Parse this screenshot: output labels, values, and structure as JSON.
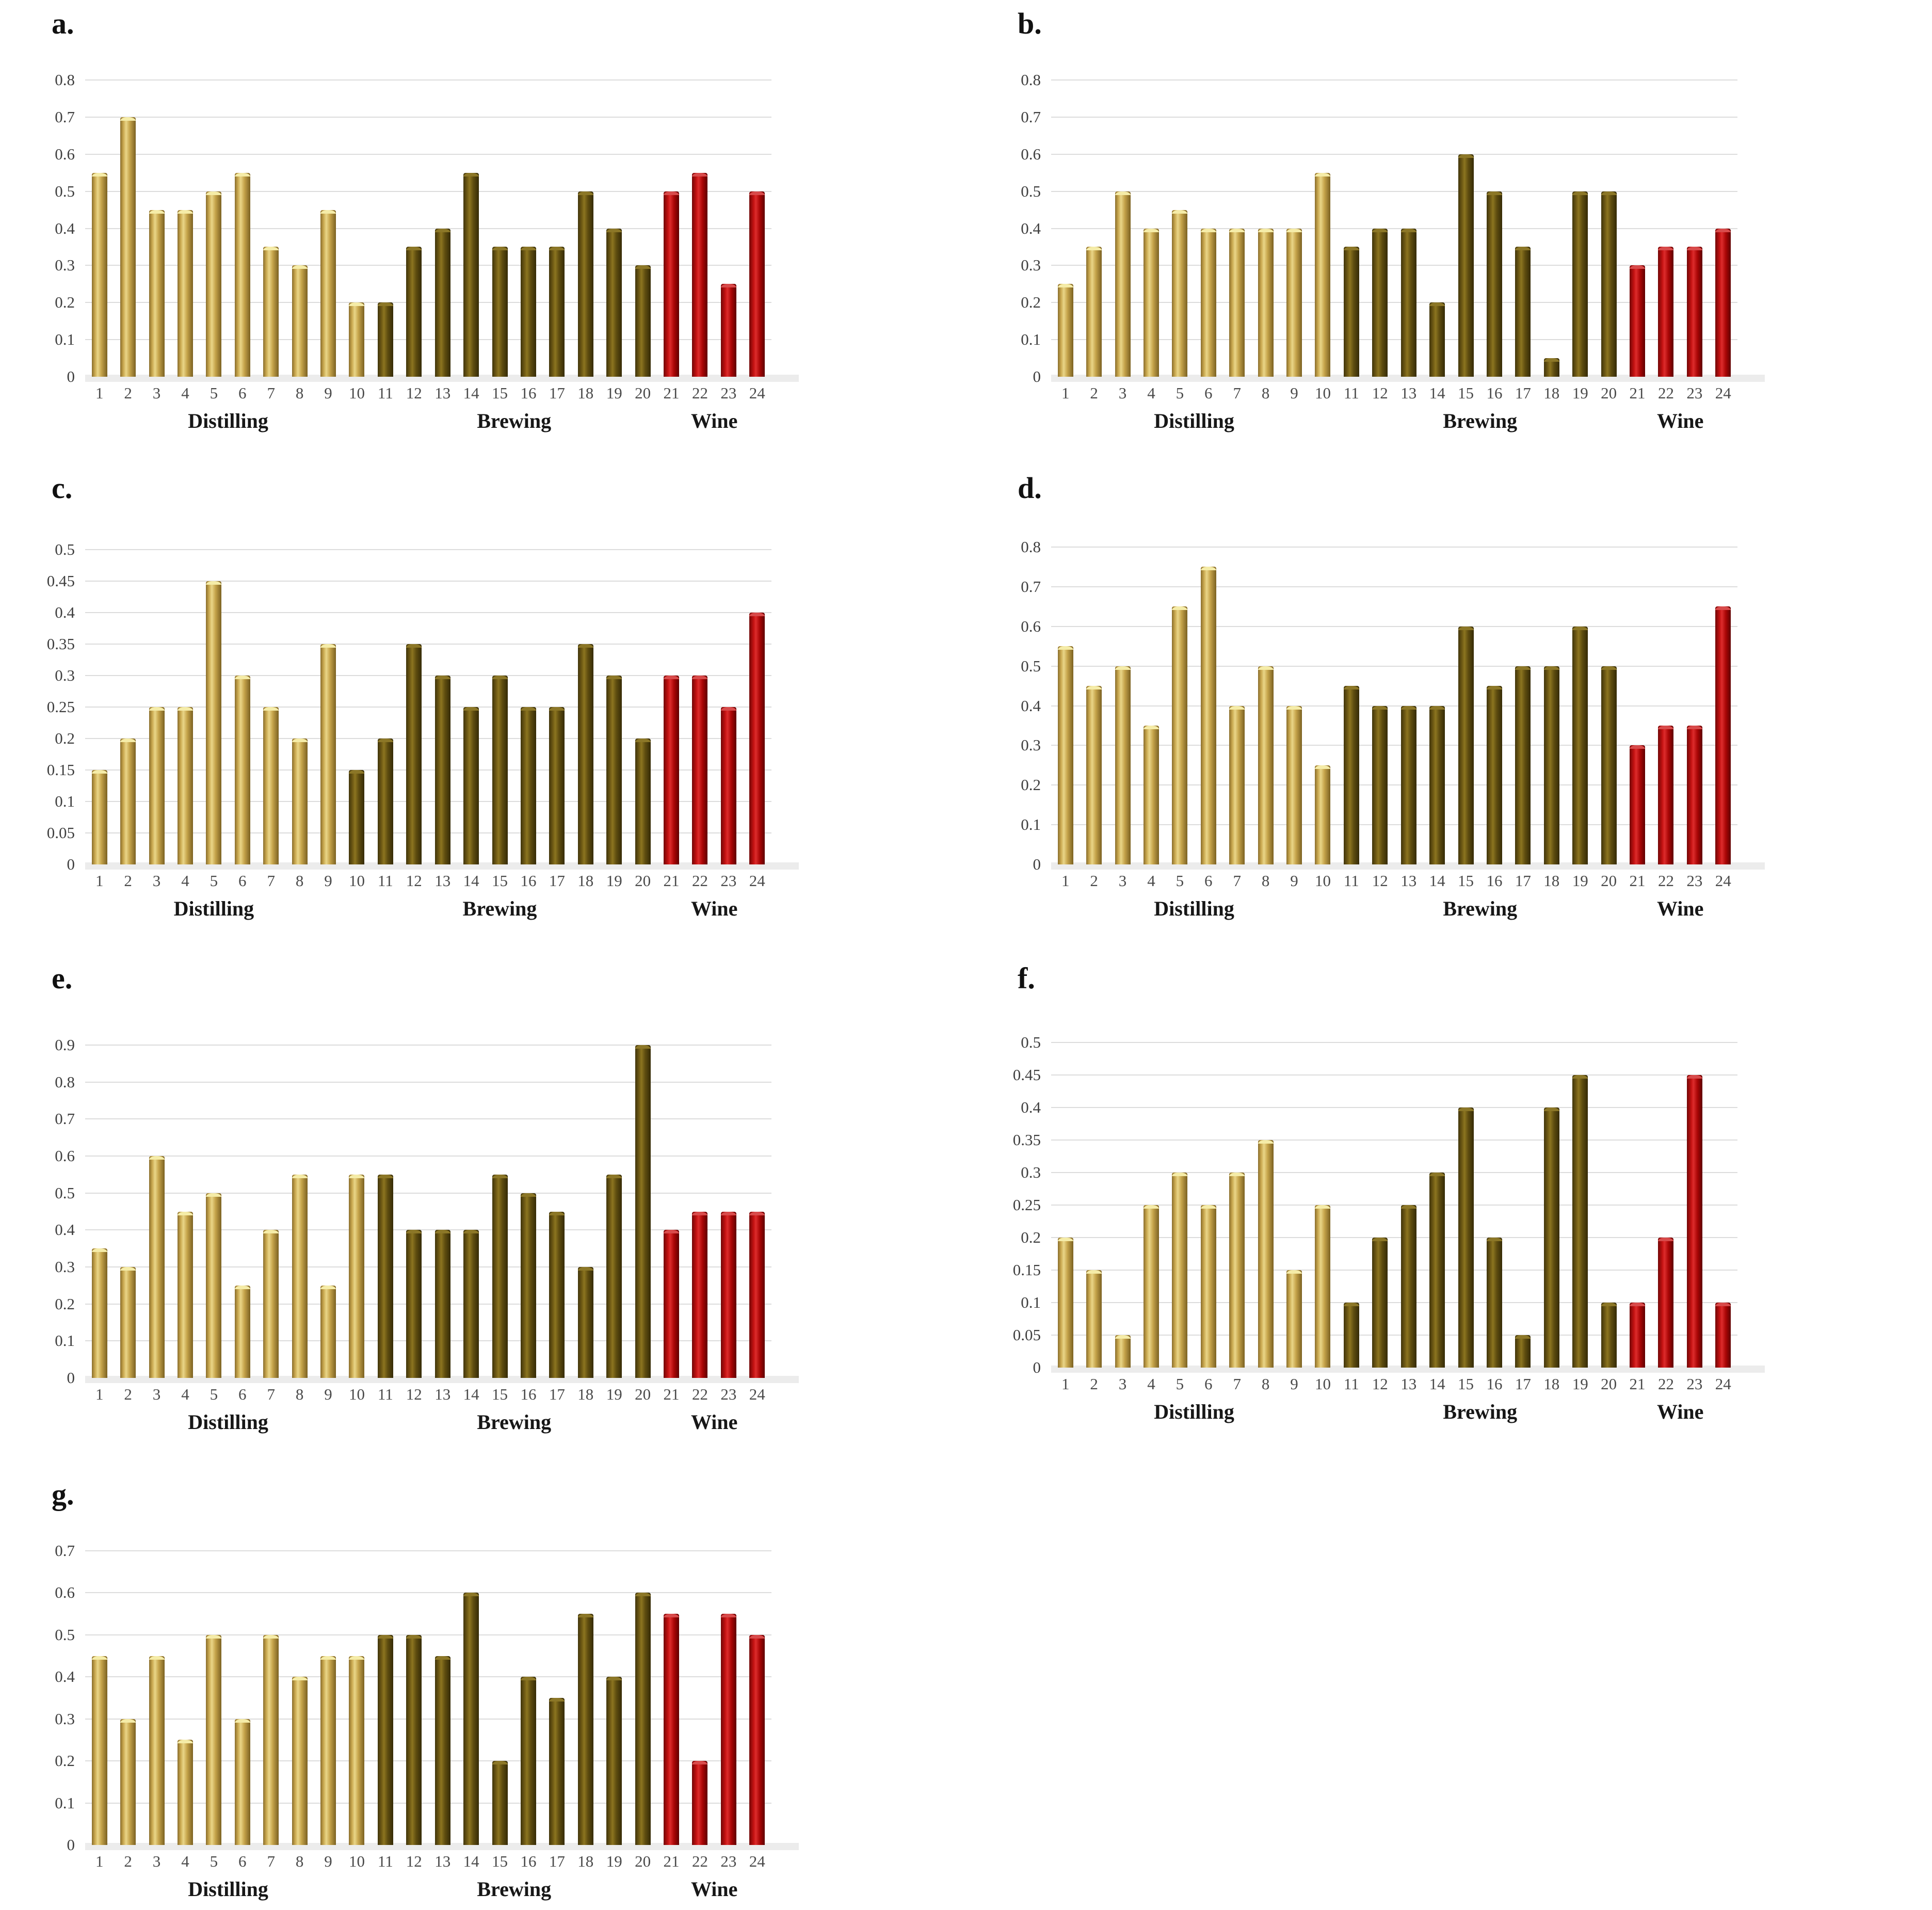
{
  "colors": {
    "distilling": "#C9A84F",
    "brewing": "#6F5A14",
    "wine": "#C01010",
    "gridline": "#DCDCDC"
  },
  "x_categories": [
    "1",
    "2",
    "3",
    "4",
    "5",
    "6",
    "7",
    "8",
    "9",
    "10",
    "11",
    "12",
    "13",
    "14",
    "15",
    "16",
    "17",
    "18",
    "19",
    "20",
    "21",
    "22",
    "23",
    "24"
  ],
  "group_labels": [
    "Distilling",
    "Brewing",
    "Wine"
  ],
  "chart_data": [
    {
      "id": "a",
      "panel_label": "a.",
      "type": "bar",
      "ylim": [
        0,
        0.8
      ],
      "ystep": 0.1,
      "grid": true,
      "groups": [
        {
          "label": "Distilling",
          "color_key": "distilling",
          "from": 1,
          "to": 10
        },
        {
          "label": "Brewing",
          "color_key": "brewing",
          "from": 11,
          "to": 20
        },
        {
          "label": "Wine",
          "color_key": "wine",
          "from": 21,
          "to": 24
        }
      ],
      "values": [
        0.55,
        0.7,
        0.45,
        0.45,
        0.5,
        0.55,
        0.35,
        0.3,
        0.45,
        0.2,
        0.2,
        0.35,
        0.4,
        0.55,
        0.35,
        0.35,
        0.35,
        0.5,
        0.4,
        0.3,
        0.5,
        0.55,
        0.25,
        0.5
      ]
    },
    {
      "id": "b",
      "panel_label": "b.",
      "type": "bar",
      "ylim": [
        0,
        0.8
      ],
      "ystep": 0.1,
      "grid": true,
      "groups": [
        {
          "label": "Distilling",
          "color_key": "distilling",
          "from": 1,
          "to": 10
        },
        {
          "label": "Brewing",
          "color_key": "brewing",
          "from": 11,
          "to": 20
        },
        {
          "label": "Wine",
          "color_key": "wine",
          "from": 21,
          "to": 24
        }
      ],
      "values": [
        0.25,
        0.35,
        0.5,
        0.4,
        0.45,
        0.4,
        0.4,
        0.4,
        0.4,
        0.55,
        0.35,
        0.4,
        0.4,
        0.2,
        0.6,
        0.5,
        0.35,
        0.05,
        0.5,
        0.5,
        0.3,
        0.35,
        0.35,
        0.4
      ]
    },
    {
      "id": "c",
      "panel_label": "c.",
      "type": "bar",
      "ylim": [
        0,
        0.5
      ],
      "ystep": 0.05,
      "grid": true,
      "groups": [
        {
          "label": "Distilling",
          "color_key": "distilling",
          "from": 1,
          "to": 9
        },
        {
          "label": "Brewing",
          "color_key": "brewing",
          "from": 10,
          "to": 20
        },
        {
          "label": "Wine",
          "color_key": "wine",
          "from": 21,
          "to": 24
        }
      ],
      "values": [
        0.15,
        0.2,
        0.25,
        0.25,
        0.45,
        0.3,
        0.25,
        0.2,
        0.35,
        0.15,
        0.2,
        0.35,
        0.3,
        0.25,
        0.3,
        0.25,
        0.25,
        0.35,
        0.3,
        0.2,
        0.3,
        0.3,
        0.25,
        0.4
      ]
    },
    {
      "id": "d",
      "panel_label": "d.",
      "type": "bar",
      "ylim": [
        0,
        0.8
      ],
      "ystep": 0.1,
      "grid": true,
      "groups": [
        {
          "label": "Distilling",
          "color_key": "distilling",
          "from": 1,
          "to": 10
        },
        {
          "label": "Brewing",
          "color_key": "brewing",
          "from": 11,
          "to": 20
        },
        {
          "label": "Wine",
          "color_key": "wine",
          "from": 21,
          "to": 24
        }
      ],
      "values": [
        0.55,
        0.45,
        0.5,
        0.35,
        0.65,
        0.75,
        0.4,
        0.5,
        0.4,
        0.25,
        0.45,
        0.4,
        0.4,
        0.4,
        0.6,
        0.45,
        0.5,
        0.5,
        0.6,
        0.5,
        0.3,
        0.35,
        0.35,
        0.65
      ]
    },
    {
      "id": "e",
      "panel_label": "e.",
      "type": "bar",
      "ylim": [
        0,
        0.9
      ],
      "ystep": 0.1,
      "grid": true,
      "groups": [
        {
          "label": "Distilling",
          "color_key": "distilling",
          "from": 1,
          "to": 10
        },
        {
          "label": "Brewing",
          "color_key": "brewing",
          "from": 11,
          "to": 20
        },
        {
          "label": "Wine",
          "color_key": "wine",
          "from": 21,
          "to": 24
        }
      ],
      "values": [
        0.35,
        0.3,
        0.6,
        0.45,
        0.5,
        0.25,
        0.4,
        0.55,
        0.25,
        0.55,
        0.55,
        0.4,
        0.4,
        0.4,
        0.55,
        0.5,
        0.45,
        0.3,
        0.55,
        0.9,
        0.4,
        0.45,
        0.45,
        0.45
      ]
    },
    {
      "id": "f",
      "panel_label": "f.",
      "type": "bar",
      "ylim": [
        0,
        0.5
      ],
      "ystep": 0.05,
      "grid": true,
      "groups": [
        {
          "label": "Distilling",
          "color_key": "distilling",
          "from": 1,
          "to": 10
        },
        {
          "label": "Brewing",
          "color_key": "brewing",
          "from": 11,
          "to": 20
        },
        {
          "label": "Wine",
          "color_key": "wine",
          "from": 21,
          "to": 24
        }
      ],
      "values": [
        0.2,
        0.15,
        0.05,
        0.25,
        0.3,
        0.25,
        0.3,
        0.35,
        0.15,
        0.25,
        0.1,
        0.2,
        0.25,
        0.3,
        0.4,
        0.2,
        0.05,
        0.4,
        0.45,
        0.1,
        0.1,
        0.2,
        0.45,
        0.1
      ]
    },
    {
      "id": "g",
      "panel_label": "g.",
      "type": "bar",
      "ylim": [
        0,
        0.7
      ],
      "ystep": 0.1,
      "grid": true,
      "groups": [
        {
          "label": "Distilling",
          "color_key": "distilling",
          "from": 1,
          "to": 10
        },
        {
          "label": "Brewing",
          "color_key": "brewing",
          "from": 11,
          "to": 20
        },
        {
          "label": "Wine",
          "color_key": "wine",
          "from": 21,
          "to": 24
        }
      ],
      "values": [
        0.45,
        0.3,
        0.45,
        0.25,
        0.5,
        0.3,
        0.5,
        0.4,
        0.45,
        0.45,
        0.5,
        0.5,
        0.45,
        0.6,
        0.2,
        0.4,
        0.35,
        0.55,
        0.4,
        0.6,
        0.55,
        0.2,
        0.55,
        0.5
      ]
    }
  ]
}
